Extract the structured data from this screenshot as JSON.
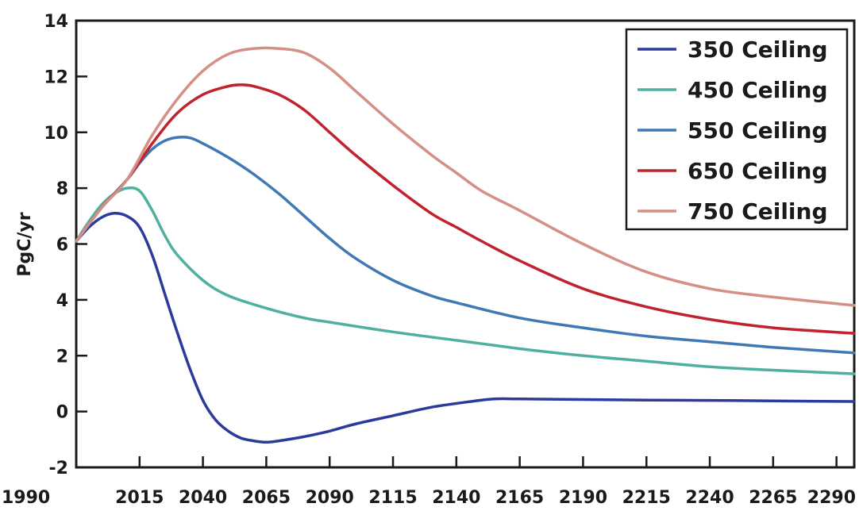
{
  "chart_data": {
    "type": "line",
    "title": "",
    "xlabel": "",
    "ylabel": "PgC/yr",
    "xlim": [
      1990,
      2297
    ],
    "ylim": [
      -2,
      14
    ],
    "x_ticks": [
      1990,
      2015,
      2040,
      2065,
      2090,
      2115,
      2140,
      2165,
      2190,
      2215,
      2240,
      2265,
      2290
    ],
    "y_ticks": [
      -2,
      0,
      2,
      4,
      6,
      8,
      10,
      12,
      14
    ],
    "legend_position": "top-right",
    "grid": false,
    "series": [
      {
        "name": "350 Ceiling",
        "color": "#2b3a9b",
        "points": [
          [
            1990,
            6.1
          ],
          [
            1995,
            6.6
          ],
          [
            2000,
            6.95
          ],
          [
            2005,
            7.1
          ],
          [
            2010,
            7.0
          ],
          [
            2015,
            6.6
          ],
          [
            2020,
            5.6
          ],
          [
            2025,
            4.2
          ],
          [
            2030,
            2.8
          ],
          [
            2035,
            1.5
          ],
          [
            2040,
            0.4
          ],
          [
            2045,
            -0.3
          ],
          [
            2050,
            -0.7
          ],
          [
            2055,
            -0.95
          ],
          [
            2060,
            -1.05
          ],
          [
            2065,
            -1.1
          ],
          [
            2070,
            -1.05
          ],
          [
            2080,
            -0.9
          ],
          [
            2090,
            -0.7
          ],
          [
            2100,
            -0.45
          ],
          [
            2115,
            -0.15
          ],
          [
            2130,
            0.15
          ],
          [
            2145,
            0.35
          ],
          [
            2155,
            0.45
          ],
          [
            2165,
            0.45
          ],
          [
            2190,
            0.43
          ],
          [
            2215,
            0.41
          ],
          [
            2240,
            0.4
          ],
          [
            2265,
            0.38
          ],
          [
            2297,
            0.36
          ]
        ]
      },
      {
        "name": "450 Ceiling",
        "color": "#4fb0a0",
        "points": [
          [
            1990,
            6.1
          ],
          [
            1995,
            6.8
          ],
          [
            2000,
            7.4
          ],
          [
            2005,
            7.8
          ],
          [
            2010,
            8.0
          ],
          [
            2015,
            7.9
          ],
          [
            2020,
            7.2
          ],
          [
            2025,
            6.3
          ],
          [
            2030,
            5.6
          ],
          [
            2040,
            4.7
          ],
          [
            2050,
            4.15
          ],
          [
            2065,
            3.7
          ],
          [
            2080,
            3.35
          ],
          [
            2090,
            3.2
          ],
          [
            2115,
            2.85
          ],
          [
            2140,
            2.55
          ],
          [
            2165,
            2.25
          ],
          [
            2190,
            2.0
          ],
          [
            2215,
            1.8
          ],
          [
            2240,
            1.6
          ],
          [
            2265,
            1.48
          ],
          [
            2297,
            1.35
          ]
        ]
      },
      {
        "name": "550 Ceiling",
        "color": "#3f78b5",
        "points": [
          [
            1990,
            6.1
          ],
          [
            2000,
            7.3
          ],
          [
            2010,
            8.3
          ],
          [
            2015,
            8.9
          ],
          [
            2020,
            9.4
          ],
          [
            2025,
            9.7
          ],
          [
            2030,
            9.82
          ],
          [
            2035,
            9.8
          ],
          [
            2040,
            9.6
          ],
          [
            2050,
            9.1
          ],
          [
            2060,
            8.5
          ],
          [
            2070,
            7.8
          ],
          [
            2080,
            7.0
          ],
          [
            2090,
            6.2
          ],
          [
            2100,
            5.5
          ],
          [
            2115,
            4.7
          ],
          [
            2130,
            4.15
          ],
          [
            2140,
            3.9
          ],
          [
            2165,
            3.35
          ],
          [
            2190,
            3.0
          ],
          [
            2215,
            2.7
          ],
          [
            2240,
            2.5
          ],
          [
            2265,
            2.3
          ],
          [
            2297,
            2.1
          ]
        ]
      },
      {
        "name": "650 Ceiling",
        "color": "#c0222e",
        "points": [
          [
            1990,
            6.1
          ],
          [
            2000,
            7.3
          ],
          [
            2010,
            8.3
          ],
          [
            2020,
            9.6
          ],
          [
            2030,
            10.7
          ],
          [
            2040,
            11.35
          ],
          [
            2050,
            11.65
          ],
          [
            2055,
            11.7
          ],
          [
            2060,
            11.65
          ],
          [
            2070,
            11.35
          ],
          [
            2080,
            10.8
          ],
          [
            2090,
            10.0
          ],
          [
            2100,
            9.2
          ],
          [
            2115,
            8.1
          ],
          [
            2130,
            7.1
          ],
          [
            2140,
            6.6
          ],
          [
            2150,
            6.1
          ],
          [
            2165,
            5.4
          ],
          [
            2190,
            4.4
          ],
          [
            2215,
            3.75
          ],
          [
            2240,
            3.3
          ],
          [
            2265,
            3.0
          ],
          [
            2297,
            2.8
          ]
        ]
      },
      {
        "name": "750 Ceiling",
        "color": "#d48f86",
        "points": [
          [
            1990,
            6.1
          ],
          [
            2000,
            7.3
          ],
          [
            2010,
            8.3
          ],
          [
            2020,
            9.9
          ],
          [
            2030,
            11.2
          ],
          [
            2040,
            12.2
          ],
          [
            2050,
            12.8
          ],
          [
            2060,
            13.0
          ],
          [
            2070,
            13.0
          ],
          [
            2080,
            12.85
          ],
          [
            2090,
            12.3
          ],
          [
            2100,
            11.5
          ],
          [
            2115,
            10.3
          ],
          [
            2130,
            9.2
          ],
          [
            2140,
            8.55
          ],
          [
            2150,
            7.9
          ],
          [
            2165,
            7.2
          ],
          [
            2190,
            6.0
          ],
          [
            2215,
            5.0
          ],
          [
            2240,
            4.4
          ],
          [
            2265,
            4.1
          ],
          [
            2297,
            3.8
          ]
        ]
      }
    ]
  }
}
